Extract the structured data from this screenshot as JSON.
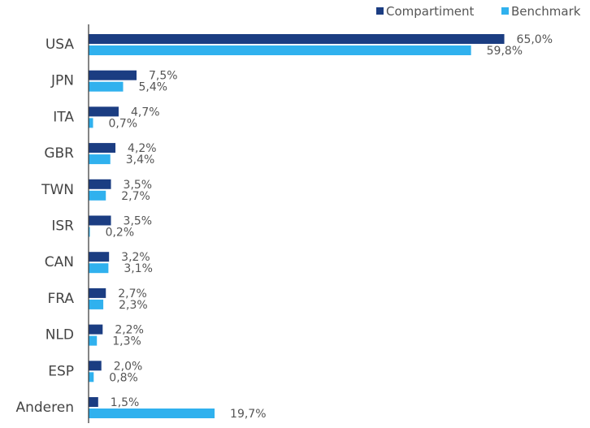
{
  "chart_data": {
    "type": "bar",
    "orientation": "horizontal",
    "categories": [
      "USA",
      "JPN",
      "ITA",
      "GBR",
      "TWN",
      "ISR",
      "CAN",
      "FRA",
      "NLD",
      "ESP",
      "Anderen"
    ],
    "series": [
      {
        "name": "Compartiment",
        "color": "#1b3d82",
        "values": [
          65.0,
          7.5,
          4.7,
          4.2,
          3.5,
          3.5,
          3.2,
          2.7,
          2.2,
          2.0,
          1.5
        ],
        "labels": [
          "65,0%",
          "7,5%",
          "4,7%",
          "4,2%",
          "3,5%",
          "3,5%",
          "3,2%",
          "2,7%",
          "2,2%",
          "2,0%",
          "1,5%"
        ]
      },
      {
        "name": "Benchmark",
        "color": "#30b1ee",
        "values": [
          59.8,
          5.4,
          0.7,
          3.4,
          2.7,
          0.2,
          3.1,
          2.3,
          1.3,
          0.8,
          19.7
        ],
        "labels": [
          "59,8%",
          "5,4%",
          "0,7%",
          "3,4%",
          "2,7%",
          "0,2%",
          "3,1%",
          "2,3%",
          "1,3%",
          "0,8%",
          "19,7%"
        ]
      }
    ],
    "legend_position": "top-right",
    "grid": false
  }
}
